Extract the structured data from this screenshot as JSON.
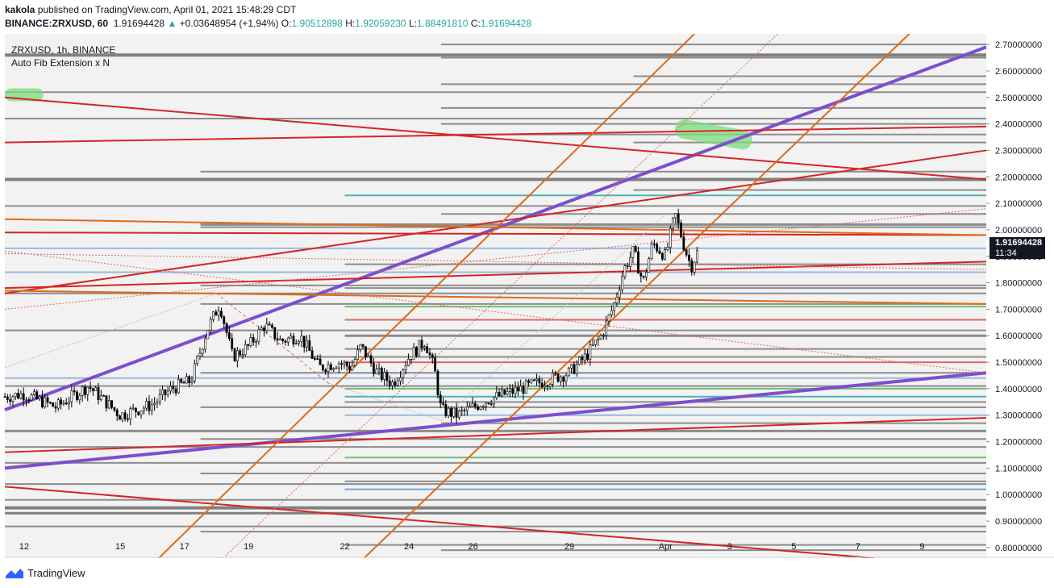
{
  "header": {
    "author": "kakola",
    "published": " published on TradingView.com, April 01, 2021 15:48:29 CDT",
    "symbol": "BINANCE:ZRXUSD, 60",
    "price": "1.91694428",
    "change": "+0.03648954 (+1.94%)",
    "o_label": "O:",
    "o_value": "1.90512898",
    "h_label": "H:",
    "h_value": "1.92059230",
    "l_label": "L:",
    "l_value": "1.88491810",
    "c_label": "C:",
    "c_value": "1.91694428"
  },
  "legend": {
    "symbol_line": "ZRXUSD, 1h, BINANCE",
    "indicator": "Auto Fib Extension x N"
  },
  "price_tag": {
    "price": "1.91694428",
    "countdown": "11:34"
  },
  "footer": {
    "brand": "TradingView"
  },
  "chart_data": {
    "type": "candlestick",
    "ylim": [
      0.76,
      2.74
    ],
    "y_ticks": [
      "2.70000000",
      "2.60000000",
      "2.50000000",
      "2.40000000",
      "2.30000000",
      "2.20000000",
      "2.10000000",
      "2.00000000",
      "1.90000000",
      "1.80000000",
      "1.70000000",
      "1.60000000",
      "1.50000000",
      "1.40000000",
      "1.30000000",
      "1.20000000",
      "1.10000000",
      "1.00000000",
      "0.90000000",
      "0.80000000"
    ],
    "x_range_days": [
      11.4,
      42.0
    ],
    "x_ticks": [
      {
        "label": "12",
        "day": 12
      },
      {
        "label": "15",
        "day": 15
      },
      {
        "label": "17",
        "day": 17
      },
      {
        "label": "19",
        "day": 19
      },
      {
        "label": "22",
        "day": 22
      },
      {
        "label": "24",
        "day": 24
      },
      {
        "label": "26",
        "day": 26
      },
      {
        "label": "29",
        "day": 29
      },
      {
        "label": "Apr",
        "day": 32
      },
      {
        "label": "3",
        "day": 34
      },
      {
        "label": "5",
        "day": 36
      },
      {
        "label": "7",
        "day": 38
      },
      {
        "label": "9",
        "day": 40
      }
    ],
    "path": [
      [
        11.4,
        1.37
      ],
      [
        12.0,
        1.38
      ],
      [
        13.0,
        1.33
      ],
      [
        14.0,
        1.41
      ],
      [
        15.0,
        1.3
      ],
      [
        16.0,
        1.34
      ],
      [
        16.6,
        1.4
      ],
      [
        17.2,
        1.43
      ],
      [
        17.7,
        1.62
      ],
      [
        18.1,
        1.72
      ],
      [
        18.5,
        1.52
      ],
      [
        19.0,
        1.56
      ],
      [
        19.5,
        1.64
      ],
      [
        20.0,
        1.58
      ],
      [
        20.6,
        1.6
      ],
      [
        21.2,
        1.48
      ],
      [
        21.8,
        1.5
      ],
      [
        22.2,
        1.48
      ],
      [
        22.5,
        1.56
      ],
      [
        23.0,
        1.46
      ],
      [
        23.5,
        1.42
      ],
      [
        24.0,
        1.52
      ],
      [
        24.5,
        1.58
      ],
      [
        24.8,
        1.47
      ],
      [
        25.0,
        1.32
      ],
      [
        25.5,
        1.3
      ],
      [
        26.0,
        1.33
      ],
      [
        26.5,
        1.36
      ],
      [
        27.0,
        1.38
      ],
      [
        27.5,
        1.4
      ],
      [
        28.0,
        1.42
      ],
      [
        28.5,
        1.44
      ],
      [
        29.0,
        1.46
      ],
      [
        29.5,
        1.52
      ],
      [
        30.0,
        1.6
      ],
      [
        30.4,
        1.72
      ],
      [
        30.7,
        1.85
      ],
      [
        31.0,
        1.92
      ],
      [
        31.3,
        1.8
      ],
      [
        31.6,
        1.95
      ],
      [
        32.0,
        1.9
      ],
      [
        32.3,
        2.06
      ],
      [
        32.6,
        1.93
      ],
      [
        32.8,
        1.86
      ],
      [
        33.0,
        1.92
      ]
    ],
    "levels": [
      {
        "price": 2.7,
        "day": 25
      },
      {
        "price": 2.66,
        "day": 11.4,
        "color": "#808080",
        "width": 4
      },
      {
        "price": 2.65,
        "day": 25
      },
      {
        "price": 2.58,
        "day": 31
      },
      {
        "price": 2.55,
        "day": 25
      },
      {
        "price": 2.52,
        "day": 11.4
      },
      {
        "price": 2.46,
        "day": 25
      },
      {
        "price": 2.42,
        "day": 11.4
      },
      {
        "price": 2.4,
        "day": 25
      },
      {
        "price": 2.36,
        "day": 25
      },
      {
        "price": 2.33,
        "day": 31
      },
      {
        "price": 2.22,
        "day": 17.5
      },
      {
        "price": 2.19,
        "day": 11.4,
        "color": "#808080",
        "width": 4
      },
      {
        "price": 2.15,
        "day": 31
      },
      {
        "price": 2.13,
        "day": 22,
        "color": "#4fb3b3"
      },
      {
        "price": 2.09,
        "day": 11.4
      },
      {
        "price": 2.06,
        "day": 25
      },
      {
        "price": 2.02,
        "day": 17.5,
        "width": 3
      },
      {
        "price": 2.01,
        "day": 17.5
      },
      {
        "price": 1.93,
        "day": 11.4,
        "color": "#9cb8dc"
      },
      {
        "price": 1.87,
        "day": 22
      },
      {
        "price": 1.84,
        "day": 11.4,
        "color": "#9cb8dc"
      },
      {
        "price": 1.79,
        "day": 17.5
      },
      {
        "price": 1.78,
        "day": 22
      },
      {
        "price": 1.76,
        "day": 11.4
      },
      {
        "price": 1.72,
        "day": 17.5
      },
      {
        "price": 1.71,
        "day": 22,
        "color": "#6fbf6f"
      },
      {
        "price": 1.66,
        "day": 22,
        "color": "#e06666"
      },
      {
        "price": 1.62,
        "day": 11.4
      },
      {
        "price": 1.6,
        "day": 22,
        "width": 3
      },
      {
        "price": 1.55,
        "day": 22
      },
      {
        "price": 1.52,
        "day": 17.5
      },
      {
        "price": 1.5,
        "day": 22,
        "color": "#e06666"
      },
      {
        "price": 1.46,
        "day": 17.5
      },
      {
        "price": 1.44,
        "day": 11.4,
        "color": "#9cb8dc"
      },
      {
        "price": 1.41,
        "day": 11.4
      },
      {
        "price": 1.4,
        "day": 22,
        "color": "#6fbf6f"
      },
      {
        "price": 1.37,
        "day": 22,
        "color": "#4fb3b3"
      },
      {
        "price": 1.35,
        "day": 22
      },
      {
        "price": 1.33,
        "day": 17.5
      },
      {
        "price": 1.3,
        "day": 22,
        "color": "#9cb8dc"
      },
      {
        "price": 1.27,
        "day": 25
      },
      {
        "price": 1.24,
        "day": 11.4,
        "width": 3
      },
      {
        "price": 1.21,
        "day": 17.5
      },
      {
        "price": 1.18,
        "day": 11.4
      },
      {
        "price": 1.14,
        "day": 22,
        "color": "#6fbf6f"
      },
      {
        "price": 1.12,
        "day": 11.4
      },
      {
        "price": 1.08,
        "day": 17.5
      },
      {
        "price": 1.05,
        "day": 22
      },
      {
        "price": 1.04,
        "day": 11.4
      },
      {
        "price": 1.02,
        "day": 22,
        "color": "#6fa8dc",
        "width": 2
      },
      {
        "price": 0.98,
        "day": 11.4
      },
      {
        "price": 0.95,
        "day": 11.4,
        "color": "#808080",
        "width": 4
      },
      {
        "price": 0.93,
        "day": 11.4,
        "color": "#808080",
        "width": 3
      },
      {
        "price": 0.88,
        "day": 11.4
      },
      {
        "price": 0.86,
        "day": 17.5
      },
      {
        "price": 0.81,
        "day": 22
      },
      {
        "price": 0.79,
        "day": 25
      }
    ],
    "trendlines": [
      {
        "from": [
          11.4,
          1.32
        ],
        "to": [
          42.0,
          2.69
        ],
        "color": "#7b4fcf",
        "width": 4
      },
      {
        "from": [
          11.4,
          1.1
        ],
        "to": [
          42.0,
          1.46
        ],
        "color": "#7b4fcf",
        "width": 4
      },
      {
        "from": [
          11.4,
          2.5
        ],
        "to": [
          42.0,
          2.19
        ],
        "color": "#d62424",
        "width": 2
      },
      {
        "from": [
          11.4,
          2.33
        ],
        "to": [
          42.0,
          2.39
        ],
        "color": "#d62424",
        "width": 2
      },
      {
        "from": [
          11.4,
          1.76
        ],
        "to": [
          42.0,
          2.3
        ],
        "color": "#d62424",
        "width": 2
      },
      {
        "from": [
          11.4,
          1.99
        ],
        "to": [
          42.0,
          1.98
        ],
        "color": "#d62424",
        "width": 2
      },
      {
        "from": [
          11.4,
          1.78
        ],
        "to": [
          42.0,
          1.88
        ],
        "color": "#d62424",
        "width": 2
      },
      {
        "from": [
          11.4,
          1.16
        ],
        "to": [
          42.0,
          1.29
        ],
        "color": "#d62424",
        "width": 2
      },
      {
        "from": [
          11.4,
          1.03
        ],
        "to": [
          38.5,
          0.76
        ],
        "color": "#d62424",
        "width": 2
      },
      {
        "from": [
          11.4,
          2.04
        ],
        "to": [
          42.0,
          1.98
        ],
        "color": "#e06a16",
        "width": 2
      },
      {
        "from": [
          11.4,
          1.77
        ],
        "to": [
          42.0,
          1.72
        ],
        "color": "#e06a16",
        "width": 2
      },
      {
        "from": [
          16.2,
          0.76
        ],
        "to": [
          32.9,
          2.74
        ],
        "color": "#e06a16",
        "width": 2
      },
      {
        "from": [
          22.6,
          0.76
        ],
        "to": [
          39.6,
          2.74
        ],
        "color": "#e06a16",
        "width": 2
      },
      {
        "from": [
          11.4,
          1.91
        ],
        "to": [
          42.0,
          1.85
        ],
        "color": "#e06666",
        "width": 1,
        "dash": "2,2"
      },
      {
        "from": [
          11.4,
          1.7
        ],
        "to": [
          42.0,
          2.08
        ],
        "color": "#e06666",
        "width": 1,
        "dash": "2,2"
      },
      {
        "from": [
          11.4,
          1.92
        ],
        "to": [
          42.0,
          1.46
        ],
        "color": "#e06666",
        "width": 1,
        "dash": "2,2"
      },
      {
        "from": [
          18.2,
          0.76
        ],
        "to": [
          35.5,
          2.74
        ],
        "color": "#e06666",
        "width": 1,
        "dash": "2,2"
      },
      {
        "from": [
          11.4,
          1.48
        ],
        "to": [
          18.0,
          1.76
        ],
        "color": "#bbbbbb",
        "width": 1,
        "dash": "2,2"
      },
      {
        "from": [
          18.0,
          1.76
        ],
        "to": [
          21.5,
          1.42
        ],
        "color": "#e06666",
        "width": 1,
        "dash": "4,3"
      },
      {
        "from": [
          21.5,
          1.42
        ],
        "to": [
          25.0,
          1.28
        ],
        "color": "#bbbbbb",
        "width": 1,
        "dash": "2,2"
      },
      {
        "from": [
          25.0,
          1.28
        ],
        "to": [
          32.0,
          2.06
        ],
        "color": "#bbbbbb",
        "width": 1,
        "dash": "2,2"
      }
    ],
    "highlights": [
      {
        "day": 11.6,
        "day2": 12.4,
        "price": 2.51,
        "price2": 2.51,
        "color": "#7ddc7d",
        "width": 16
      },
      {
        "day": 32.6,
        "day2": 34.4,
        "price": 2.38,
        "price2": 2.34,
        "color": "#7ddc7d",
        "width": 24
      }
    ]
  }
}
